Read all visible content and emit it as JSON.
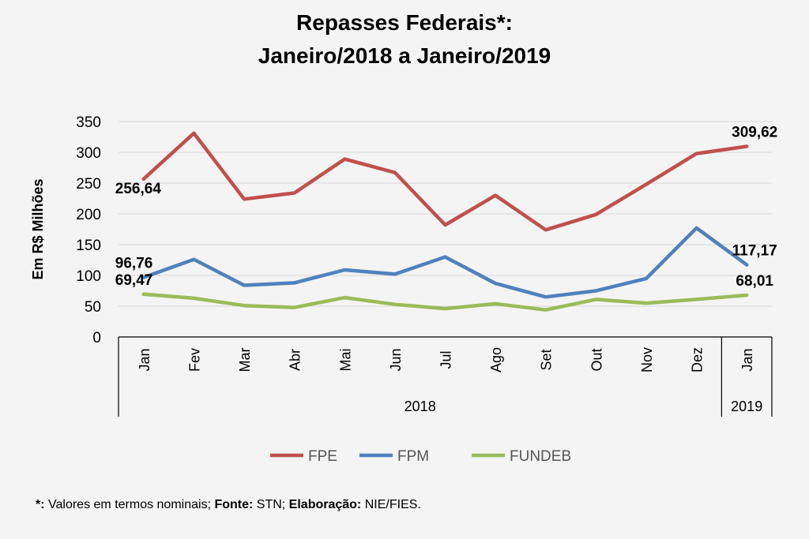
{
  "chart_data": {
    "type": "line",
    "title": [
      "Repasses Federais*:",
      "Janeiro/2018 a Janeiro/2019"
    ],
    "ylabel": "Em R$ Milhões",
    "ylim": [
      0,
      350
    ],
    "yticks": [
      0,
      50,
      100,
      150,
      200,
      250,
      300,
      350
    ],
    "grid": true,
    "legend_position": "bottom",
    "categories": [
      "Jan",
      "Fev",
      "Mar",
      "Abr",
      "Mai",
      "Jun",
      "Jul",
      "Ago",
      "Set",
      "Out",
      "Nov",
      "Dez",
      "Jan"
    ],
    "groups": [
      {
        "label": "2018",
        "count": 12
      },
      {
        "label": "2019",
        "count": 1
      }
    ],
    "series": [
      {
        "name": "FPE",
        "color": "#c0504d",
        "values": [
          256.64,
          331,
          224,
          234,
          289,
          267,
          182,
          230,
          174,
          199,
          248,
          298,
          309.62
        ]
      },
      {
        "name": "FPM",
        "color": "#4f81bd",
        "values": [
          96.76,
          126,
          84,
          88,
          109,
          102,
          130,
          87,
          65,
          75,
          95,
          177,
          117.17
        ]
      },
      {
        "name": "FUNDEB",
        "color": "#9bbb59",
        "values": [
          69.47,
          63,
          51,
          48,
          64,
          53,
          46,
          54,
          44,
          61,
          55,
          61,
          68.01
        ]
      }
    ],
    "data_labels": [
      {
        "series": 0,
        "index": 0,
        "text": "256,64"
      },
      {
        "series": 0,
        "index": 12,
        "text": "309,62"
      },
      {
        "series": 1,
        "index": 0,
        "text": "96,76"
      },
      {
        "series": 1,
        "index": 12,
        "text": "117,17"
      },
      {
        "series": 2,
        "index": 0,
        "text": "69,47"
      },
      {
        "series": 2,
        "index": 12,
        "text": "68,01"
      }
    ]
  },
  "footnote": {
    "star": "*:",
    "text1": " Valores em termos nominais; ",
    "fonte_label": "Fonte:",
    "fonte_value": " STN; ",
    "elab_label": "Elaboração:",
    "elab_value": " NIE/FIES."
  }
}
